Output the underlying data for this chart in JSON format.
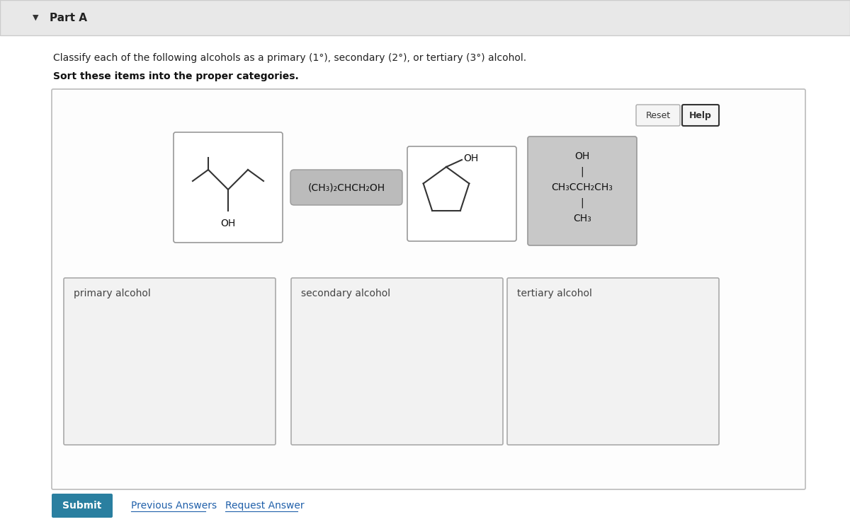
{
  "title": "Part A",
  "instruction1": "Classify each of the following alcohols as a primary (1°), secondary (2°), or tertiary (3°) alcohol.",
  "instruction2": "Sort these items into the proper categories.",
  "category_labels": [
    "primary alcohol",
    "secondary alcohol",
    "tertiary alcohol"
  ],
  "reset_label": "Reset",
  "help_label": "Help",
  "submit_label": "Submit",
  "prev_answers": "Previous Answers",
  "request_answer": "Request Answer",
  "submit_bg": "#2a7fa0",
  "submit_fg": "#ffffff",
  "card2_formula": "(CH₃)₂CHCH₂OH",
  "card4_line1": "OH",
  "card4_line2": "|",
  "card4_line3": "CH₃CCH₂CH₃",
  "card4_line4": "|",
  "card4_line5": "CH₃"
}
